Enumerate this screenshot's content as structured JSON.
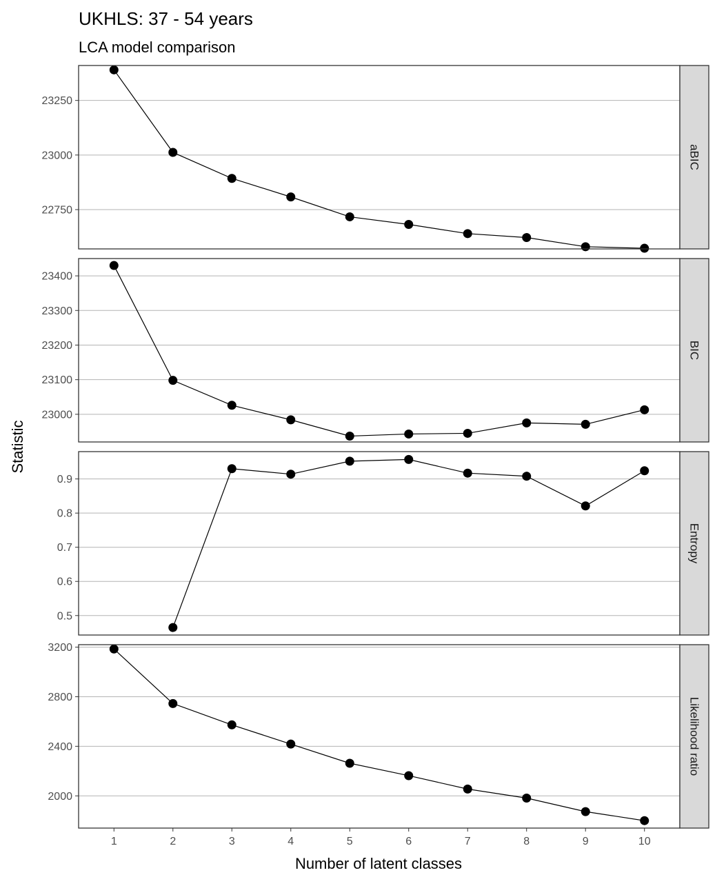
{
  "chart_data": {
    "type": "line",
    "title": "UKHLS: 37 - 54 years",
    "subtitle": "LCA model comparison",
    "xlabel": "Number of latent classes",
    "ylabel": "Statistic",
    "x": [
      1,
      2,
      3,
      4,
      5,
      6,
      7,
      8,
      9,
      10
    ],
    "xticks": [
      "1",
      "2",
      "3",
      "4",
      "5",
      "6",
      "7",
      "8",
      "9",
      "10"
    ],
    "xlim": [
      0.4,
      10.6
    ],
    "grid": true,
    "colors": {
      "line": "#000000",
      "point": "#000000",
      "grid": "#b3b3b3",
      "strip_bg": "#d9d9d9",
      "border": "#333333"
    },
    "panels": [
      {
        "name": "aBIC",
        "values": [
          23390,
          23012,
          22893,
          22808,
          22717,
          22682,
          22640,
          22622,
          22580,
          22573
        ],
        "ylim": [
          22570,
          23410
        ],
        "yticks": [
          22750,
          23000,
          23250
        ],
        "ytick_labels": [
          "22750",
          "23000",
          "23250"
        ]
      },
      {
        "name": "BIC",
        "values": [
          23430,
          23098,
          23026,
          22984,
          22937,
          22943,
          22945,
          22975,
          22971,
          23013
        ],
        "ylim": [
          22920,
          23450
        ],
        "yticks": [
          23000,
          23100,
          23200,
          23300,
          23400
        ],
        "ytick_labels": [
          "23000",
          "23100",
          "23200",
          "23300",
          "23400"
        ]
      },
      {
        "name": "Entropy",
        "values": [
          null,
          0.465,
          0.93,
          0.914,
          0.952,
          0.957,
          0.917,
          0.908,
          0.821,
          0.924
        ],
        "ylim": [
          0.443,
          0.98
        ],
        "yticks": [
          0.5,
          0.6,
          0.7,
          0.8,
          0.9
        ],
        "ytick_labels": [
          "0.5",
          "0.6",
          "0.7",
          "0.8",
          "0.9"
        ]
      },
      {
        "name": "Likelihood ratio",
        "values": [
          3185,
          2745,
          2573,
          2418,
          2263,
          2163,
          2055,
          1982,
          1873,
          1800
        ],
        "ylim": [
          1740,
          3220
        ],
        "yticks": [
          2000,
          2400,
          2800,
          3200
        ],
        "ytick_labels": [
          "2000",
          "2400",
          "2800",
          "3200"
        ]
      }
    ]
  }
}
